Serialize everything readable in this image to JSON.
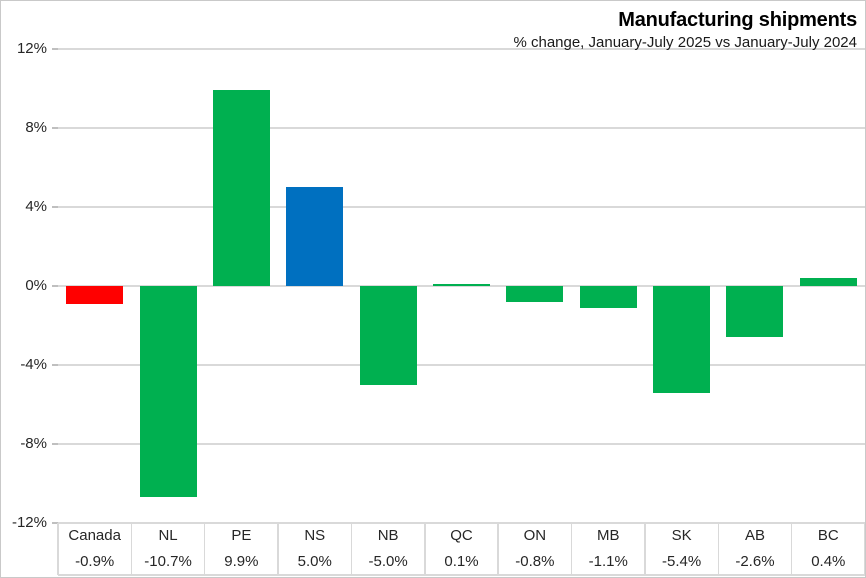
{
  "title": "Manufacturing shipments",
  "subtitle": "% change, January-July 2025 vs January-July 2024",
  "chart_data": {
    "type": "bar",
    "title": "Manufacturing shipments",
    "subtitle": "% change, January-July 2025 vs January-July 2024",
    "categories": [
      "Canada",
      "NL",
      "PE",
      "NS",
      "NB",
      "QC",
      "ON",
      "MB",
      "SK",
      "AB",
      "BC"
    ],
    "values": [
      -0.9,
      -10.7,
      9.9,
      5.0,
      -5.0,
      0.1,
      -0.8,
      -1.1,
      -5.4,
      -2.6,
      0.4
    ],
    "value_labels": [
      "-0.9%",
      "-10.7%",
      "9.9%",
      "5.0%",
      "-5.0%",
      "0.1%",
      "-0.8%",
      "-1.1%",
      "-5.4%",
      "-2.6%",
      "0.4%"
    ],
    "bar_colors": [
      "#FF0000",
      "#00B050",
      "#00B050",
      "#0070C0",
      "#00B050",
      "#00B050",
      "#00B050",
      "#00B050",
      "#00B050",
      "#00B050",
      "#00B050"
    ],
    "xlabel": "",
    "ylabel": "",
    "ylim": [
      -12,
      12
    ],
    "ytick_values": [
      12,
      8,
      4,
      0,
      -4,
      -8,
      -12
    ],
    "ytick_labels": [
      "12%",
      "8%",
      "4%",
      "0%",
      "-4%",
      "-8%",
      "-12%"
    ],
    "grid": true,
    "legend": "none",
    "data_table_shown": true,
    "colors": {
      "canada_red": "#FF0000",
      "province_green": "#00B050",
      "ns_blue": "#0070C0",
      "gridline": "#D9D9D9",
      "tick": "#BFBFBF",
      "axis_text": "#262626",
      "frame_border": "#C9C9C9"
    }
  }
}
